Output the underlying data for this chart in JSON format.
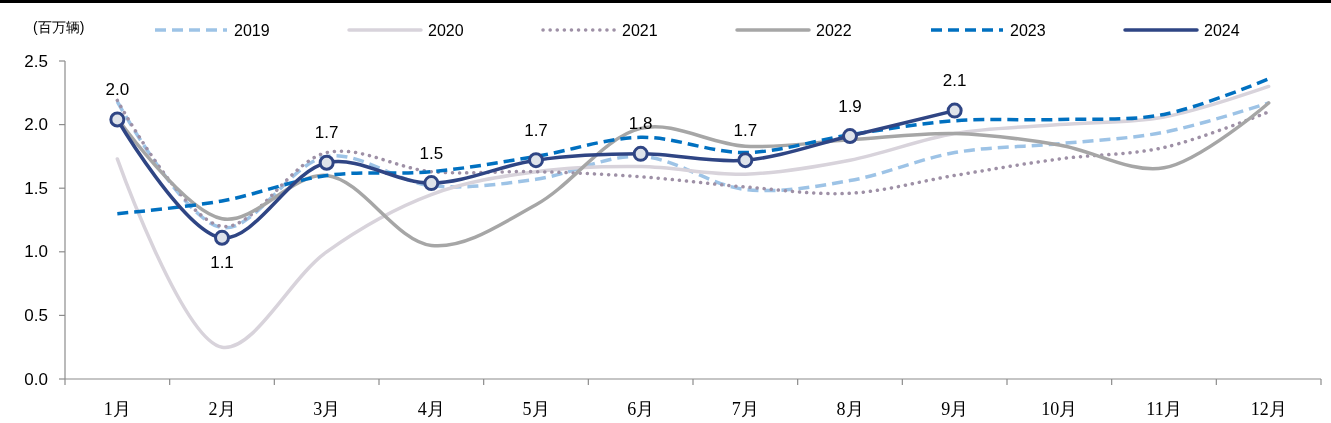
{
  "chart_data": {
    "type": "line",
    "ylabel": "(百万辆)",
    "categories": [
      "1月",
      "2月",
      "3月",
      "4月",
      "5月",
      "6月",
      "7月",
      "8月",
      "9月",
      "10月",
      "11月",
      "12月"
    ],
    "series": [
      {
        "name": "2019",
        "color": "#9dc3e6",
        "line_style": "dashed",
        "values": [
          2.18,
          1.19,
          1.75,
          1.52,
          1.57,
          1.75,
          1.49,
          1.56,
          1.78,
          1.85,
          1.94,
          2.17
        ]
      },
      {
        "name": "2020",
        "color": "#d8d3db",
        "line_style": "solid",
        "values": [
          1.73,
          0.25,
          1.0,
          1.45,
          1.63,
          1.67,
          1.61,
          1.72,
          1.93,
          2.0,
          2.06,
          2.3
        ]
      },
      {
        "name": "2021",
        "color": "#9e90a6",
        "line_style": "dotted",
        "values": [
          2.19,
          1.2,
          1.78,
          1.63,
          1.63,
          1.59,
          1.51,
          1.46,
          1.6,
          1.73,
          1.82,
          2.1
        ]
      },
      {
        "name": "2022",
        "color": "#a6a6a6",
        "line_style": "solid",
        "values": [
          2.05,
          1.26,
          1.6,
          1.05,
          1.37,
          1.97,
          1.83,
          1.88,
          1.93,
          1.84,
          1.66,
          2.17
        ]
      },
      {
        "name": "2023",
        "color": "#0070c0",
        "line_style": "dashed",
        "values": [
          1.3,
          1.4,
          1.6,
          1.63,
          1.75,
          1.9,
          1.78,
          1.92,
          2.03,
          2.04,
          2.08,
          2.36
        ]
      },
      {
        "name": "2024",
        "color": "#2f4584",
        "line_style": "solid",
        "marker": "circle",
        "values": [
          2.04,
          1.11,
          1.7,
          1.54,
          1.72,
          1.77,
          1.72,
          1.91,
          2.11,
          null,
          null,
          null
        ],
        "value_labels": [
          "2.0",
          "1.1",
          "1.7",
          "1.5",
          "1.7",
          "1.8",
          "1.7",
          "1.9",
          "2.1",
          null,
          null,
          null
        ]
      }
    ],
    "ylim": [
      0,
      2.5
    ],
    "yticks": [
      {
        "value": 0,
        "label": "0.0"
      },
      0.5,
      {
        "value": 1,
        "label": "1.0"
      },
      1.5,
      {
        "value": 2,
        "label": "2.0"
      },
      2.5
    ],
    "legend": "top"
  }
}
